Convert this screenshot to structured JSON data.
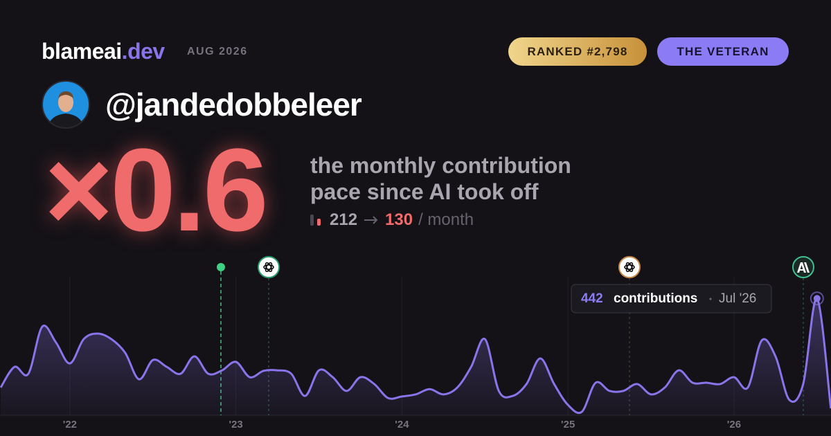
{
  "header": {
    "brand": "blameai",
    "brand_suffix": ".dev",
    "date": "AUG 2026",
    "rank": "RANKED #2,798",
    "badge": "THE VETERAN",
    "username": "@jandedobbeleer"
  },
  "stats": {
    "factor": "×0.6",
    "description": [
      "the monthly contribution",
      "pace since AI took off"
    ],
    "before": 212,
    "after": 130,
    "unit": "/ month"
  },
  "chart_data": {
    "type": "area",
    "categories": [
      null,
      null,
      null,
      null,
      null,
      "'22",
      null,
      null,
      null,
      null,
      null,
      null,
      null,
      null,
      null,
      null,
      null,
      "'23",
      null,
      null,
      null,
      null,
      null,
      null,
      null,
      null,
      null,
      null,
      null,
      "'24",
      null,
      null,
      null,
      null,
      null,
      null,
      null,
      null,
      null,
      null,
      null,
      "'25",
      null,
      null,
      null,
      null,
      null,
      null,
      null,
      null,
      null,
      null,
      null,
      "'26",
      null,
      null,
      null,
      null,
      null,
      null,
      null
    ],
    "values": [
      105,
      183,
      157,
      335,
      275,
      196,
      288,
      309,
      288,
      236,
      136,
      209,
      183,
      157,
      223,
      157,
      170,
      202,
      144,
      168,
      170,
      157,
      73,
      170,
      144,
      92,
      144,
      118,
      65,
      71,
      79,
      99,
      79,
      105,
      183,
      288,
      92,
      73,
      118,
      215,
      118,
      39,
      13,
      123,
      92,
      92,
      118,
      79,
      105,
      170,
      123,
      123,
      118,
      144,
      105,
      283,
      223,
      58,
      118,
      442,
      26
    ],
    "color": "#8b74ea",
    "ylim": [
      0,
      550
    ],
    "grid": true,
    "tooltip": {
      "label": "contributions",
      "date": "Jul '26"
    }
  }
}
